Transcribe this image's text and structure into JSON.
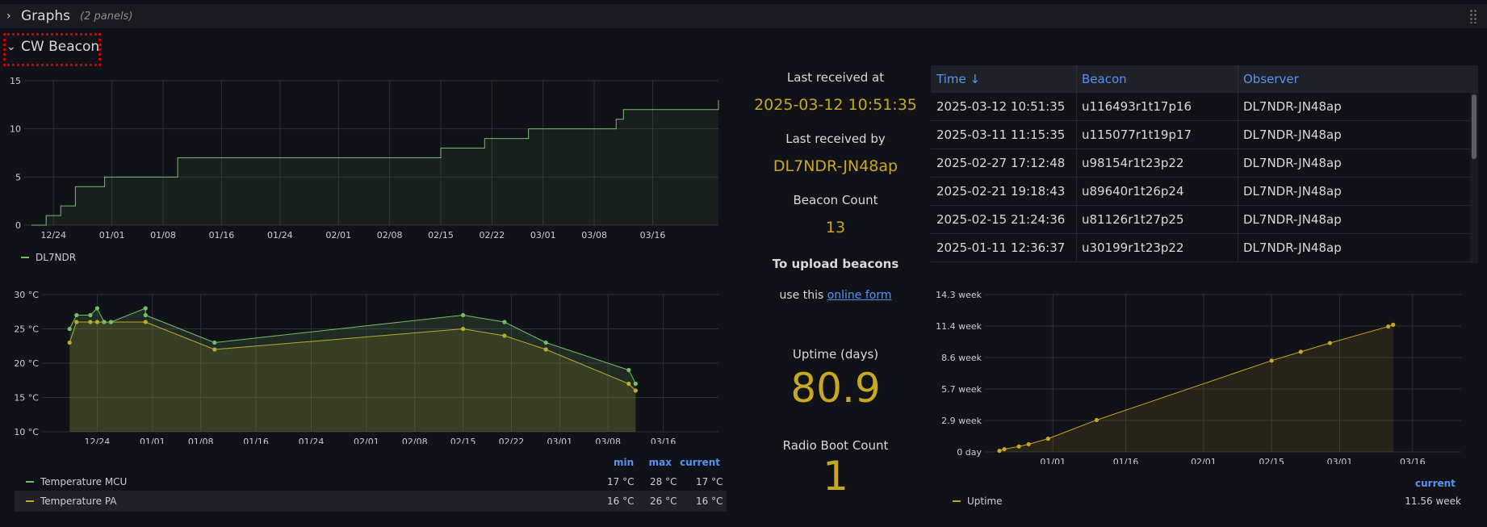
{
  "rows": {
    "graphs": {
      "title": "Graphs",
      "count": "(2 panels)"
    },
    "cw": {
      "title": "CW Beacon"
    }
  },
  "chart_data": [
    {
      "type": "line",
      "title": "",
      "x_dates": [
        "2024-12-21",
        "2024-12-23",
        "2024-12-25",
        "2024-12-27",
        "2024-12-31",
        "2025-01-10",
        "2025-02-15",
        "2025-02-21",
        "2025-02-27",
        "2025-03-11",
        "2025-03-12",
        "2025-03-25"
      ],
      "series": [
        {
          "name": "DL7NDR",
          "color": "#73bf69",
          "values": [
            0,
            1,
            2,
            4,
            5,
            7,
            8,
            9,
            10,
            11,
            12,
            13
          ],
          "step": true
        }
      ],
      "ylim": [
        0,
        15
      ],
      "yticks": [
        "0",
        "5",
        "10",
        "15"
      ],
      "xticks": [
        "12/24",
        "01/01",
        "01/08",
        "01/16",
        "01/24",
        "02/01",
        "02/08",
        "02/15",
        "02/22",
        "03/01",
        "03/08",
        "03/16"
      ],
      "grid": true,
      "legend": "bottom-left"
    },
    {
      "type": "line",
      "title": "",
      "series": [
        {
          "name": "Temperature MCU",
          "color": "#73bf69",
          "points": [
            [
              "2024-12-20",
              25
            ],
            [
              "2024-12-21",
              27
            ],
            [
              "2024-12-23",
              27
            ],
            [
              "2024-12-24",
              28
            ],
            [
              "2024-12-25",
              26
            ],
            [
              "2024-12-26",
              26
            ],
            [
              "2024-12-31",
              28
            ],
            [
              "2024-12-31",
              27
            ],
            [
              "2025-01-10",
              23
            ],
            [
              "2025-02-15",
              27
            ],
            [
              "2025-02-21",
              26
            ],
            [
              "2025-02-27",
              23
            ],
            [
              "2025-03-11",
              19
            ],
            [
              "2025-03-12",
              17
            ]
          ],
          "min": "17 °C",
          "max": "28 °C",
          "current": "17 °C"
        },
        {
          "name": "Temperature PA",
          "color": "#c8a822",
          "points": [
            [
              "2024-12-20",
              23
            ],
            [
              "2024-12-21",
              26
            ],
            [
              "2024-12-23",
              26
            ],
            [
              "2024-12-24",
              26
            ],
            [
              "2024-12-25",
              26
            ],
            [
              "2024-12-26",
              26
            ],
            [
              "2024-12-31",
              26
            ],
            [
              "2025-01-10",
              22
            ],
            [
              "2025-02-15",
              25
            ],
            [
              "2025-02-21",
              24
            ],
            [
              "2025-02-27",
              22
            ],
            [
              "2025-03-11",
              17
            ],
            [
              "2025-03-12",
              16
            ]
          ],
          "min": "16 °C",
          "max": "26 °C",
          "current": "16 °C"
        }
      ],
      "ylim": [
        10,
        30
      ],
      "yticks": [
        "10 °C",
        "15 °C",
        "20 °C",
        "25 °C",
        "30 °C"
      ],
      "xticks": [
        "12/24",
        "01/01",
        "01/08",
        "01/16",
        "01/24",
        "02/01",
        "02/08",
        "02/15",
        "02/22",
        "03/01",
        "03/08",
        "03/16"
      ],
      "legend_header": {
        "min": "min",
        "max": "max",
        "current": "current"
      },
      "grid": true,
      "legend": "bottom-table"
    },
    {
      "type": "line",
      "title": "",
      "series": [
        {
          "name": "Uptime",
          "color": "#c8a822",
          "points": [
            [
              "2024-12-21",
              0.1
            ],
            [
              "2024-12-22",
              0.25
            ],
            [
              "2024-12-25",
              0.5
            ],
            [
              "2024-12-27",
              0.7
            ],
            [
              "2024-12-31",
              1.2
            ],
            [
              "2025-01-10",
              2.9
            ],
            [
              "2025-02-15",
              8.3
            ],
            [
              "2025-02-21",
              9.1
            ],
            [
              "2025-02-27",
              9.9
            ],
            [
              "2025-03-11",
              11.4
            ],
            [
              "2025-03-12",
              11.56
            ]
          ],
          "current": "11.56 week"
        }
      ],
      "ylim": [
        0,
        14.3
      ],
      "yticks": [
        "0 day",
        "2.9 week",
        "5.7 week",
        "8.6 week",
        "11.4 week",
        "14.3 week"
      ],
      "xticks": [
        "01/01",
        "01/16",
        "02/01",
        "02/15",
        "03/01",
        "03/16"
      ],
      "legend_header": {
        "current": "current"
      },
      "grid": true,
      "legend": "bottom-table"
    }
  ],
  "stats": {
    "last_received_at_label": "Last received at",
    "last_received_at_value": "2025-03-12 10:51:35",
    "last_received_by_label": "Last received by",
    "last_received_by_value": "DL7NDR-JN48ap",
    "beacon_count_label": "Beacon Count",
    "beacon_count_value": "13",
    "upload_title": "To upload beacons",
    "upload_prefix": "use this",
    "upload_link": "online form",
    "uptime_label": "Uptime (days)",
    "uptime_value": "80.9",
    "boot_count_label": "Radio Boot Count",
    "boot_count_value": "1"
  },
  "table": {
    "headers": {
      "time": "Time ↓",
      "beacon": "Beacon",
      "observer": "Observer"
    },
    "rows": [
      {
        "time": "2025-03-12 10:51:35",
        "beacon": "u116493r1t17p16",
        "observer": "DL7NDR-JN48ap"
      },
      {
        "time": "2025-03-11 11:15:35",
        "beacon": "u115077r1t19p17",
        "observer": "DL7NDR-JN48ap"
      },
      {
        "time": "2025-02-27 17:12:48",
        "beacon": "u98154r1t23p22",
        "observer": "DL7NDR-JN48ap"
      },
      {
        "time": "2025-02-21 19:18:43",
        "beacon": "u89640r1t26p24",
        "observer": "DL7NDR-JN48ap"
      },
      {
        "time": "2025-02-15 21:24:36",
        "beacon": "u81126r1t27p25",
        "observer": "DL7NDR-JN48ap"
      },
      {
        "time": "2025-01-11 12:36:37",
        "beacon": "u30199r1t23p22",
        "observer": "DL7NDR-JN48ap"
      }
    ]
  },
  "colors": {
    "green": "#73bf69",
    "yellow": "#c8a822",
    "blue": "#5794f2",
    "grid": "#2c2f36"
  }
}
